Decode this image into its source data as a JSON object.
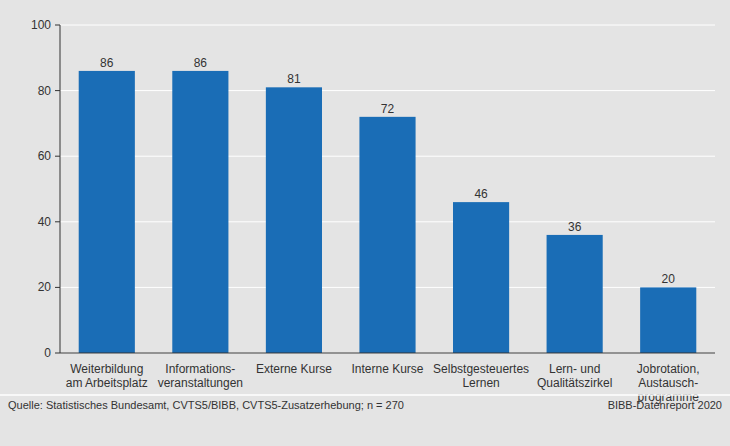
{
  "chart_data": {
    "type": "bar",
    "categories": [
      "Weiterbildung\nam Arbeitsplatz",
      "Informations-\nveranstaltungen",
      "Externe Kurse",
      "Interne Kurse",
      "Selbstgesteuertes\nLernen",
      "Lern- und\nQualitätszirkel",
      "Jobrotation,\nAustausch-\nprogramme"
    ],
    "values": [
      86,
      86,
      81,
      72,
      46,
      36,
      20
    ],
    "color": "#1a6db6",
    "ylim": [
      0,
      100
    ],
    "yticks": [
      0,
      20,
      40,
      60,
      80,
      100
    ],
    "grid": true,
    "data_labels": true,
    "annotations": [
      "Quelle: Statistisches Bundesamt, CVTS5/BIBB, CVTS5-Zusatzerhebung; n = 270",
      "BIBB-Datenreport 2020"
    ]
  }
}
